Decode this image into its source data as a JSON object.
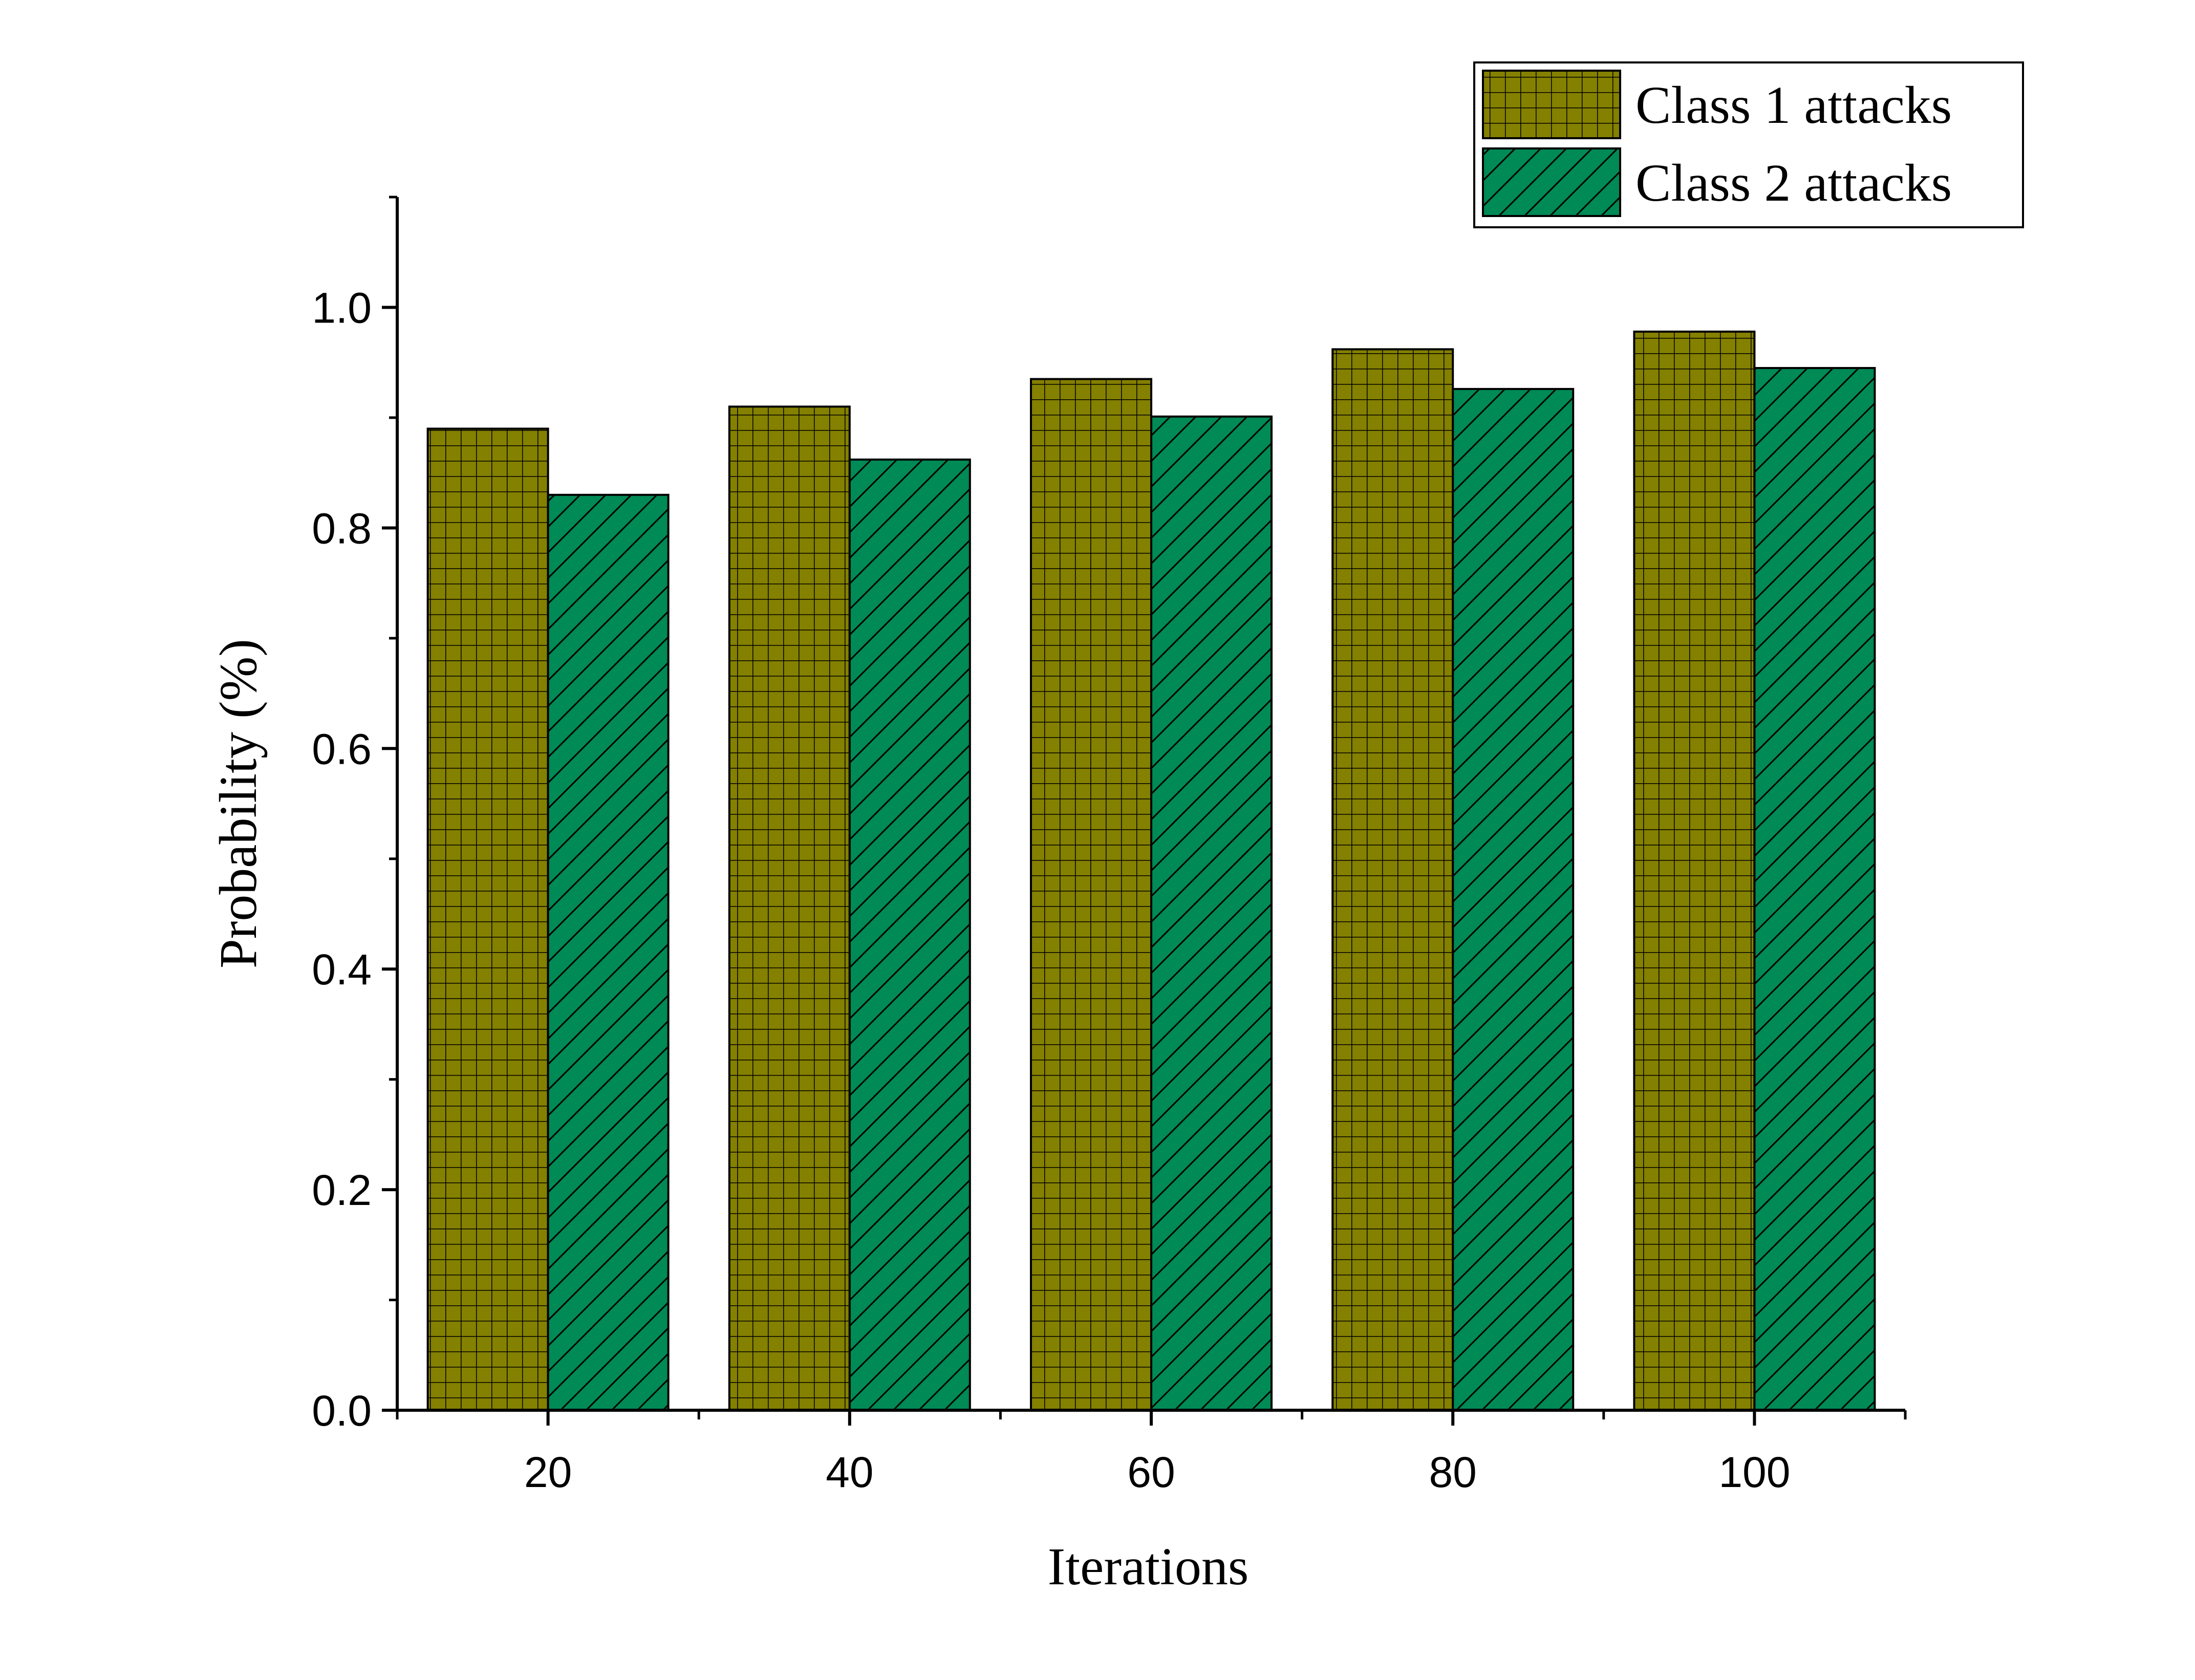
{
  "chart_data": {
    "type": "bar",
    "categories": [
      "20",
      "40",
      "60",
      "80",
      "100"
    ],
    "series": [
      {
        "name": "Class 1 attacks",
        "values": [
          0.89,
          0.91,
          0.935,
          0.962,
          0.978
        ],
        "color": "#848000",
        "pattern": "grid"
      },
      {
        "name": "Class 2 attacks",
        "values": [
          0.83,
          0.862,
          0.901,
          0.926,
          0.945
        ],
        "color": "#008a55",
        "pattern": "diagonal"
      }
    ],
    "xlabel": "Iterations",
    "ylabel": "Probability (%)",
    "ylim": [
      0,
      1.1
    ],
    "yticks": [
      "0.0",
      "0.2",
      "0.4",
      "0.6",
      "0.8",
      "1.0"
    ],
    "grid": false,
    "legend_position": "top-right"
  }
}
